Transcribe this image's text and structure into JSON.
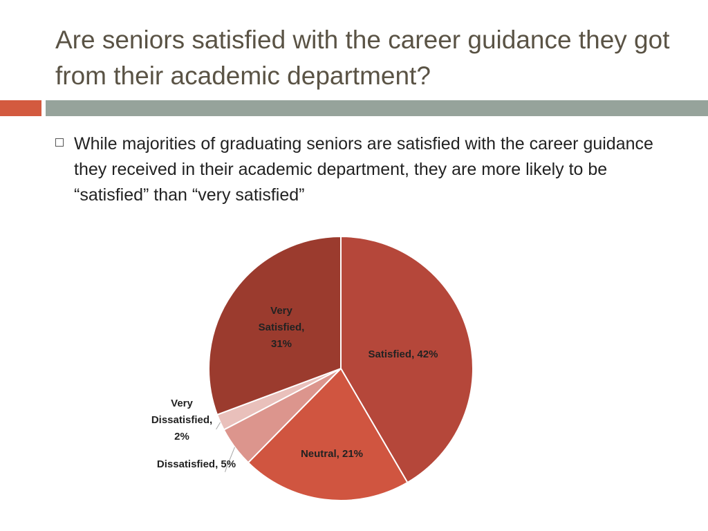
{
  "slide": {
    "title": "Are seniors satisfied with the career guidance they got from their academic department?",
    "bullet": "While majorities of graduating seniors are satisfied with the career guidance they received in their academic department, they are more likely to be “satisfied” than “very satisfied”",
    "accent_colors": {
      "orange": "#d35a3f",
      "gray": "#96a39b"
    }
  },
  "chart_data": {
    "type": "pie",
    "title": "",
    "slices": [
      {
        "label": "Satisfied",
        "value": 42,
        "display": "Satisfied, 42%",
        "color": "#b5473a",
        "text_color": "#222222"
      },
      {
        "label": "Neutral",
        "value": 21,
        "display": "Neutral, 21%",
        "color": "#d05540",
        "text_color": "#222222"
      },
      {
        "label": "Dissatisfied",
        "value": 5,
        "display": "Dissatisfied, 5%",
        "color": "#dc958d",
        "text_color": "#222222"
      },
      {
        "label": "Very Dissatisfied",
        "value": 2,
        "display": "Very Dissatisfied, 2%",
        "color": "#e9c0bb",
        "text_color": "#222222"
      },
      {
        "label": "Very Satisfied",
        "value": 31,
        "display": "Very Satisfied, 31%",
        "color": "#9b3b2e",
        "text_color": "#222222"
      }
    ],
    "start": "12 o'clock",
    "direction": "clockwise",
    "legend": "none",
    "data_labels": "category, percent"
  }
}
